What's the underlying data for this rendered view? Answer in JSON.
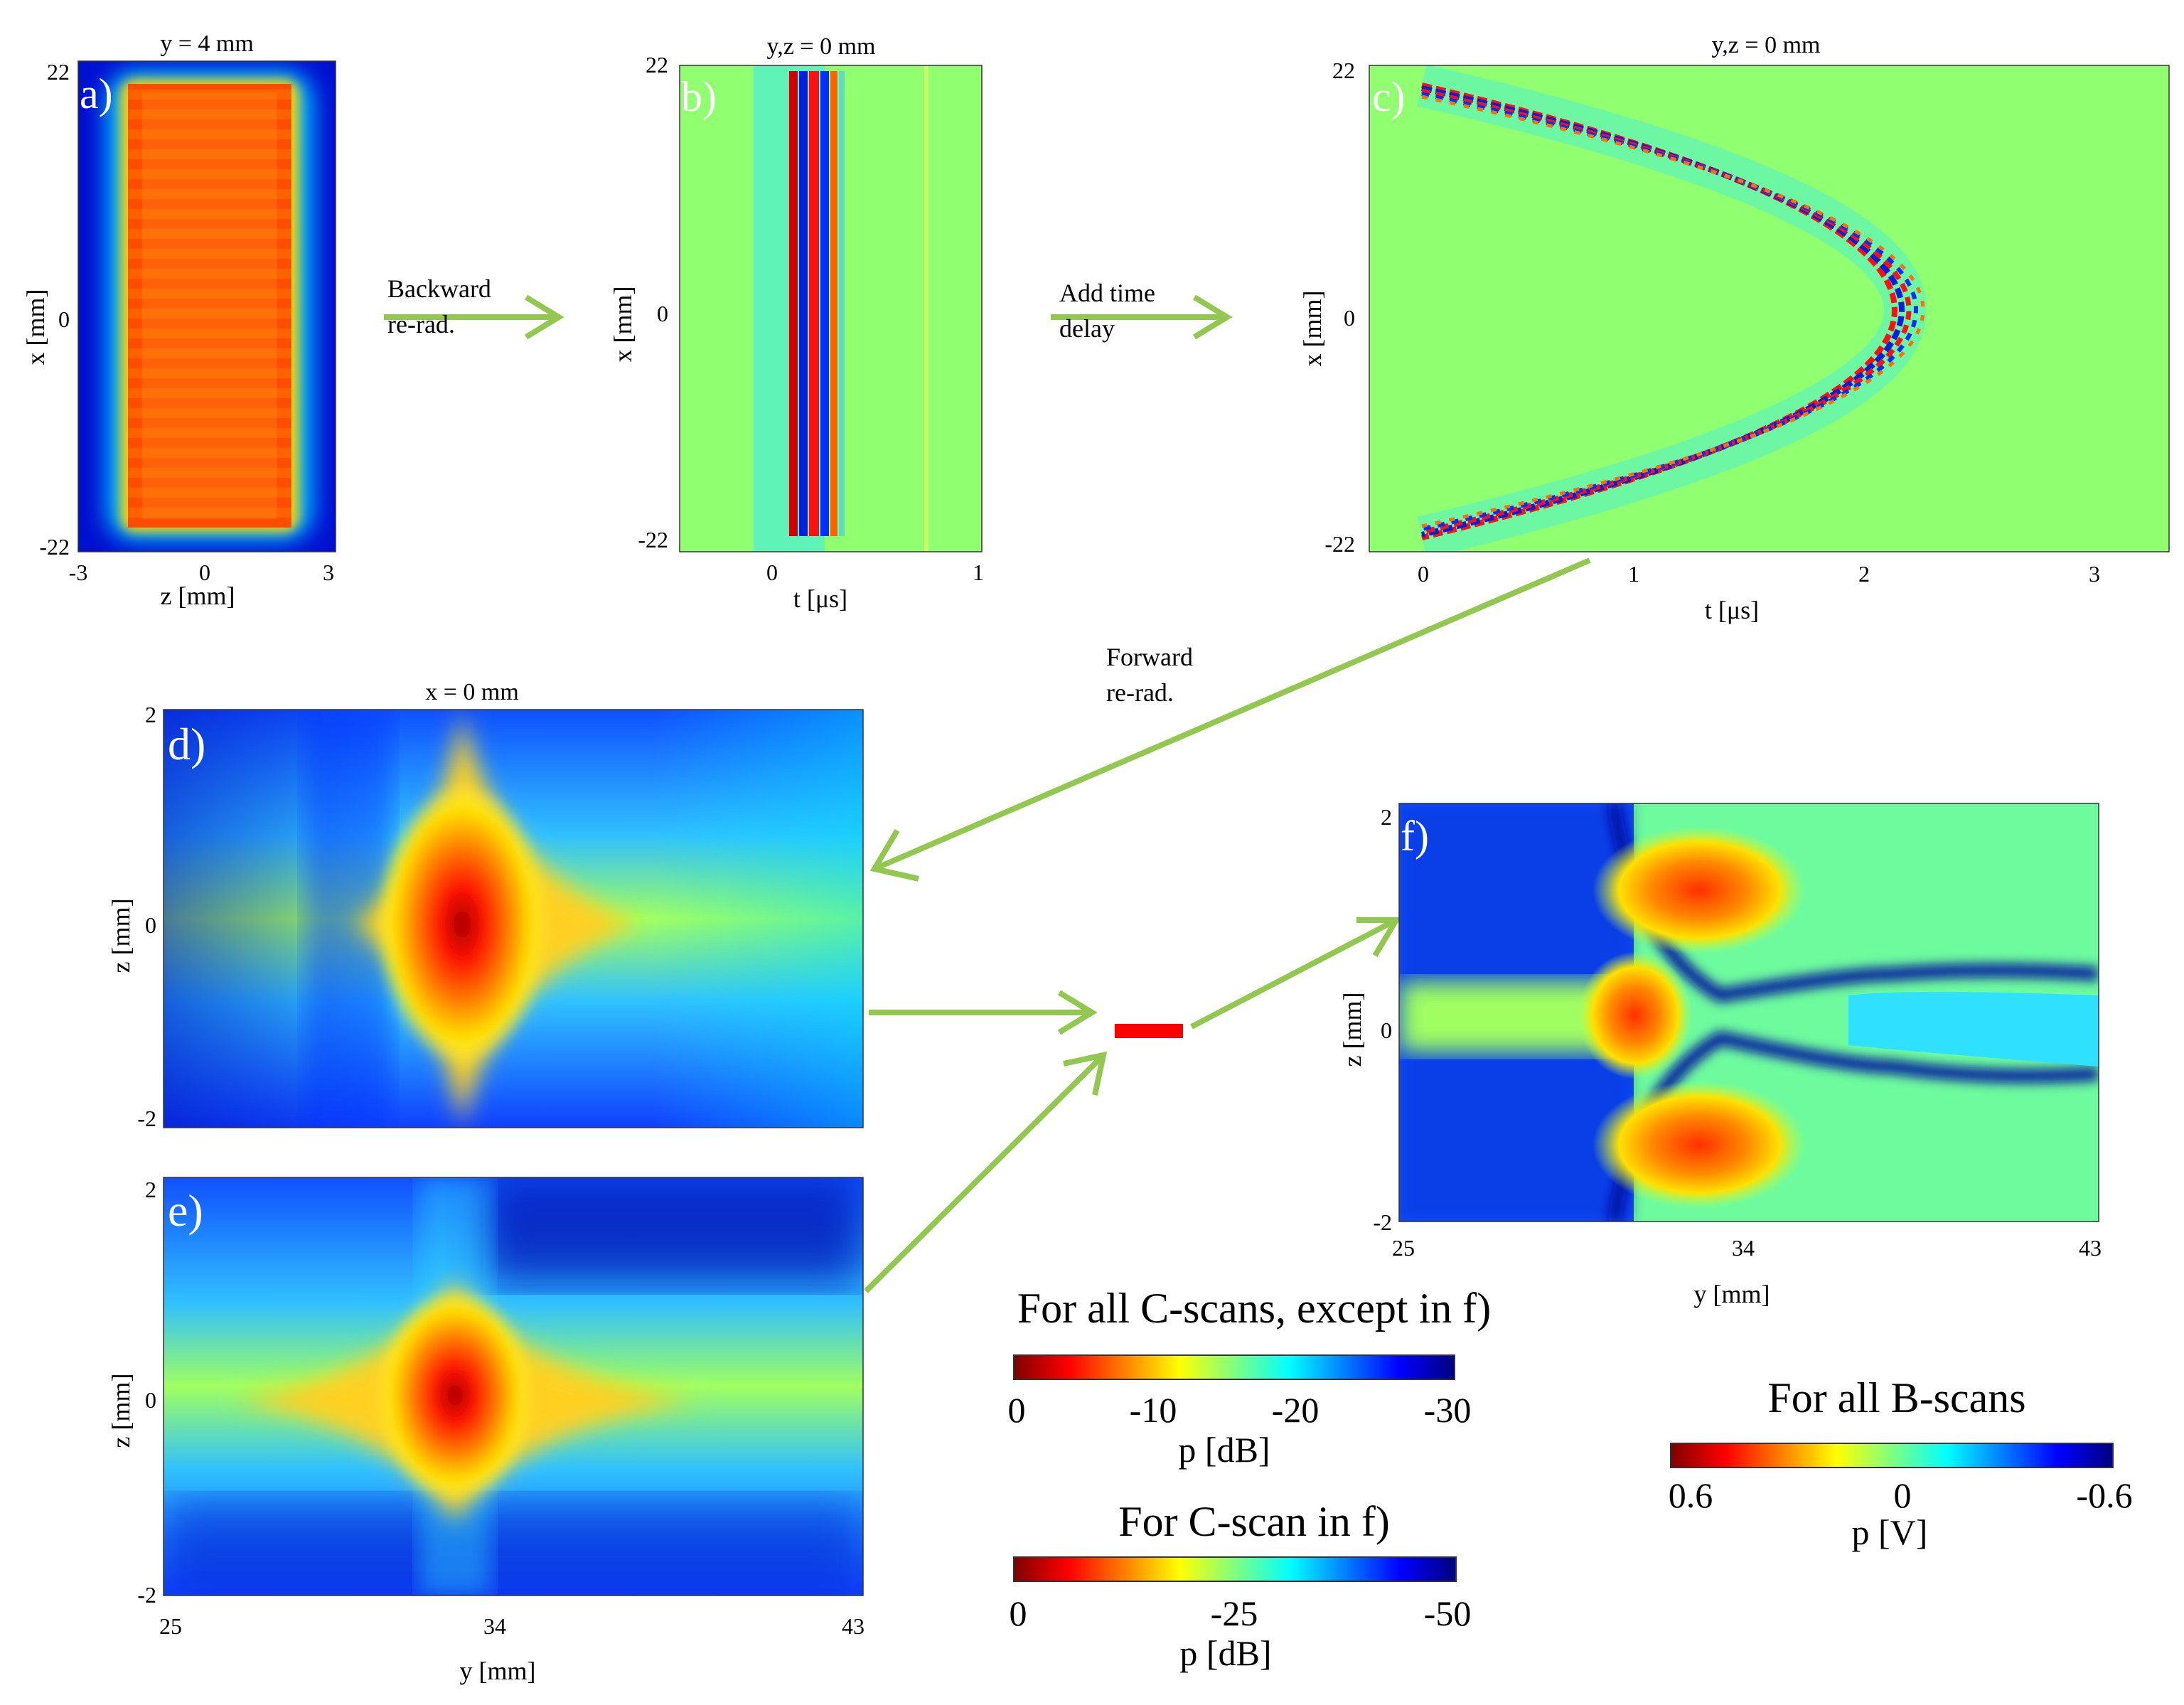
{
  "colors": {
    "arrow": "#92c850",
    "marker": "#ff0000",
    "jet": [
      "#00007f",
      "#0000ff",
      "#007fff",
      "#00ffff",
      "#7fff7f",
      "#ffff00",
      "#ff7f00",
      "#ff0000",
      "#7f0000"
    ]
  },
  "panels": {
    "a": {
      "label": "a)",
      "title": "y = 4 mm",
      "xlabel": "z [mm]",
      "ylabel": "x [mm]",
      "xticks": [
        "-3",
        "0",
        "3"
      ],
      "yticks": [
        "22",
        "0",
        "-22"
      ]
    },
    "b": {
      "label": "b)",
      "title": "y,z = 0 mm",
      "xlabel": "t [μs]",
      "ylabel": "x [mm]",
      "xticks": [
        "0",
        "1"
      ],
      "yticks": [
        "22",
        "0",
        "-22"
      ]
    },
    "c": {
      "label": "c)",
      "title": "y,z = 0 mm",
      "xlabel": "t [μs]",
      "ylabel": "x [mm]",
      "xticks": [
        "0",
        "1",
        "2",
        "3"
      ],
      "yticks": [
        "22",
        "0",
        "-22"
      ]
    },
    "d": {
      "label": "d)",
      "title": "x = 0 mm",
      "ylabel": "z [mm]",
      "yticks": [
        "2",
        "0",
        "-2"
      ]
    },
    "e": {
      "label": "e)",
      "xlabel": "y [mm]",
      "ylabel": "z [mm]",
      "xticks": [
        "25",
        "34",
        "43"
      ],
      "yticks": [
        "2",
        "0",
        "-2"
      ]
    },
    "f": {
      "label": "f)",
      "xlabel": "y [mm]",
      "ylabel": "z [mm]",
      "xticks": [
        "25",
        "34",
        "43"
      ],
      "yticks": [
        "2",
        "0",
        "-2"
      ]
    }
  },
  "arrows": {
    "backward": [
      "Backward",
      "re-rad."
    ],
    "add_delay": [
      "Add time",
      "delay"
    ],
    "forward": [
      "Forward",
      "re-rad."
    ]
  },
  "colorbars": {
    "cscans": {
      "title": "For all C-scans, except in f)",
      "ticks": [
        "0",
        "-10",
        "-20",
        "-30"
      ],
      "unit": "p [dB]"
    },
    "cscan_f": {
      "title": "For C-scan in f)",
      "ticks": [
        "0",
        "-25",
        "-50"
      ],
      "unit": "p [dB]"
    },
    "bscans": {
      "title": "For all B-scans",
      "ticks": [
        "0.6",
        "0",
        "-0.6"
      ],
      "unit": "p [V]"
    }
  }
}
